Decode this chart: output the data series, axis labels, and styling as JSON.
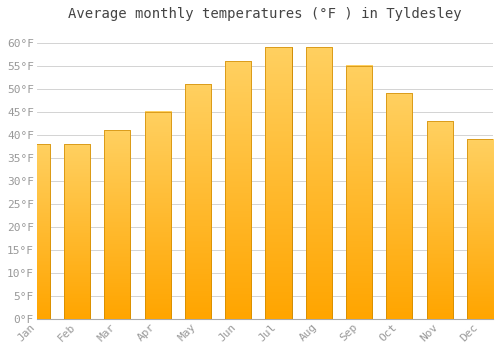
{
  "title": "Average monthly temperatures (°F ) in Tyldesley",
  "months": [
    "Jan",
    "Feb",
    "Mar",
    "Apr",
    "May",
    "Jun",
    "Jul",
    "Aug",
    "Sep",
    "Oct",
    "Nov",
    "Dec"
  ],
  "values": [
    38,
    38,
    41,
    45,
    51,
    56,
    59,
    59,
    55,
    49,
    43,
    39
  ],
  "bar_color_main": "#FFA500",
  "bar_color_light": "#FFD060",
  "bar_edge_color": "#CC8800",
  "background_color": "#FFFFFF",
  "grid_color": "#CCCCCC",
  "text_color": "#999999",
  "title_color": "#444444",
  "ylim": [
    0,
    63
  ],
  "yticks": [
    0,
    5,
    10,
    15,
    20,
    25,
    30,
    35,
    40,
    45,
    50,
    55,
    60
  ],
  "title_fontsize": 10,
  "tick_fontsize": 8
}
